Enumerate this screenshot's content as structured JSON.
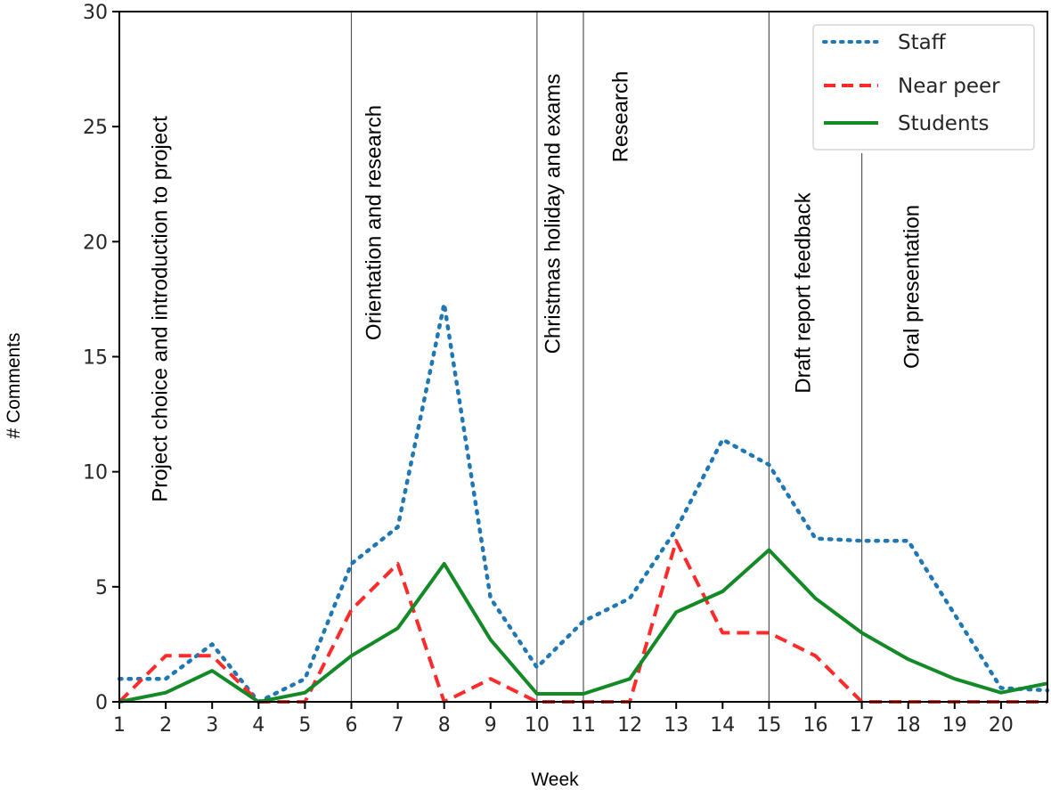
{
  "chart_data": {
    "type": "line",
    "title": "",
    "xlabel": "Week",
    "ylabel": "# Comments",
    "xlim": [
      1,
      21
    ],
    "ylim": [
      0,
      30
    ],
    "grid": false,
    "x": [
      1,
      2,
      3,
      4,
      5,
      6,
      7,
      8,
      9,
      10,
      11,
      12,
      13,
      14,
      15,
      16,
      17,
      18,
      19,
      20,
      21
    ],
    "x_ticks": [
      "1",
      "2",
      "3",
      "4",
      "5",
      "6",
      "7",
      "8",
      "9",
      "10",
      "11",
      "12",
      "13",
      "14",
      "15",
      "16",
      "17",
      "18",
      "19",
      "20"
    ],
    "y_ticks": [
      "0",
      "5",
      "10",
      "15",
      "20",
      "25",
      "30"
    ],
    "series": [
      {
        "name": "Staff",
        "color": "#1f77b4",
        "style": "dotted",
        "values": [
          1.0,
          1.0,
          2.5,
          0.0,
          1.0,
          6.0,
          7.6,
          17.3,
          4.5,
          1.5,
          3.5,
          4.5,
          7.5,
          11.4,
          10.3,
          7.1,
          7.0,
          7.0,
          3.8,
          0.6,
          0.5
        ]
      },
      {
        "name": "Near peer",
        "color": "#ff2a2a",
        "style": "dashed",
        "values": [
          0,
          2,
          2,
          0,
          0,
          4,
          6,
          0,
          1,
          0,
          0,
          0,
          7,
          3,
          3,
          2,
          0,
          0,
          0,
          0,
          0
        ]
      },
      {
        "name": "Students",
        "color": "#138a25",
        "style": "solid",
        "values": [
          0.0,
          0.4,
          1.35,
          0.0,
          0.4,
          2.0,
          3.2,
          6.0,
          2.7,
          0.35,
          0.35,
          1.0,
          3.9,
          4.8,
          6.6,
          4.5,
          3.0,
          1.85,
          1.0,
          0.4,
          0.8
        ]
      }
    ],
    "phase_boundaries": [
      6,
      10,
      11,
      15,
      17
    ],
    "phases": [
      {
        "label": "Project choice and introduction to project",
        "start_week": 1,
        "end_week": 6
      },
      {
        "label": "Orientation and research",
        "start_week": 6,
        "end_week": 10
      },
      {
        "label": "Christmas holiday and exams",
        "start_week": 10,
        "end_week": 11
      },
      {
        "label": "Research",
        "start_week": 11,
        "end_week": 15
      },
      {
        "label": "Draft report feedback",
        "start_week": 15,
        "end_week": 17
      },
      {
        "label": "Oral presentation",
        "start_week": 17,
        "end_week": 21
      }
    ],
    "legend": {
      "placement": "top-right",
      "entries": [
        "Staff",
        "Near peer",
        "Students"
      ]
    }
  }
}
